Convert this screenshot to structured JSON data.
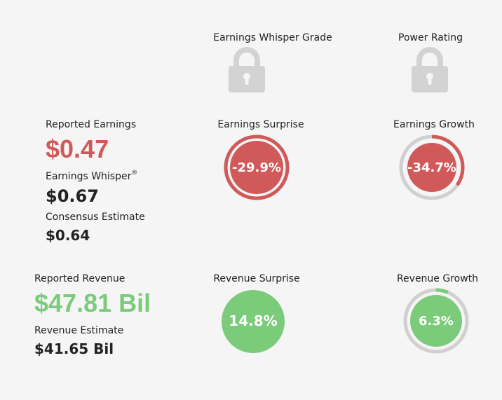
{
  "grades": {
    "whisper_grade_label": "Earnings Whisper Grade",
    "power_rating_label": "Power Rating",
    "lock_icon": "lock-icon"
  },
  "earnings": {
    "reported_label": "Reported Earnings",
    "reported_value": "$0.47",
    "whisper_label": "Earnings Whisper",
    "whisper_mark": "®",
    "whisper_value": "$0.67",
    "consensus_label": "Consensus Estimate",
    "consensus_value": "$0.64",
    "surprise_label": "Earnings Surprise",
    "surprise_value": "-29.9%",
    "surprise_fraction": 0.299,
    "growth_label": "Earnings Growth",
    "growth_value": "-34.7%",
    "growth_fraction": 0.347
  },
  "revenue": {
    "reported_label": "Reported Revenue",
    "reported_value": "$47.81 Bil",
    "estimate_label": "Revenue Estimate",
    "estimate_value": "$41.65 Bil",
    "surprise_label": "Revenue Surprise",
    "surprise_value": "14.8%",
    "surprise_fraction": 0.148,
    "growth_label": "Revenue Growth",
    "growth_value": "6.3%",
    "growth_fraction": 0.063
  },
  "colors": {
    "negative": "#d05a5a",
    "positive": "#7acb7a",
    "track": "#d0d0d0",
    "lock": "#d3d3d3"
  }
}
